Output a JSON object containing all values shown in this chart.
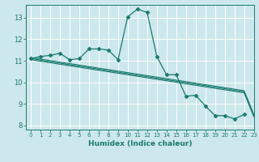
{
  "title": "",
  "xlabel": "Humidex (Indice chaleur)",
  "background_color": "#cce8ec",
  "grid_color": "#ffffff",
  "line_color": "#1a7a6e",
  "xlim": [
    -0.5,
    23
  ],
  "ylim": [
    7.8,
    13.6
  ],
  "yticks": [
    8,
    9,
    10,
    11,
    12,
    13
  ],
  "xticks": [
    0,
    1,
    2,
    3,
    4,
    5,
    6,
    7,
    8,
    9,
    10,
    11,
    12,
    13,
    14,
    15,
    16,
    17,
    18,
    19,
    20,
    21,
    22,
    23
  ],
  "series0_x": [
    0,
    1,
    2,
    3,
    4,
    5,
    6,
    7,
    8,
    9,
    10,
    11,
    12,
    13,
    14,
    15,
    16,
    17,
    18,
    19,
    20,
    21,
    22
  ],
  "series0_y": [
    11.1,
    11.2,
    11.25,
    11.35,
    11.05,
    11.1,
    11.55,
    11.55,
    11.5,
    11.05,
    13.05,
    13.4,
    13.25,
    11.2,
    10.35,
    10.35,
    9.35,
    9.4,
    8.9,
    8.45,
    8.45,
    8.3,
    8.5
  ],
  "series1_x": [
    0,
    1,
    2,
    3,
    4,
    5,
    6,
    7,
    8,
    9,
    10,
    11,
    12,
    13,
    14,
    15,
    16,
    17,
    18,
    19,
    20,
    21,
    22,
    23
  ],
  "series1_y": [
    11.05,
    10.98,
    10.91,
    10.84,
    10.77,
    10.7,
    10.63,
    10.56,
    10.49,
    10.42,
    10.35,
    10.28,
    10.21,
    10.14,
    10.07,
    10.0,
    9.93,
    9.86,
    9.79,
    9.72,
    9.65,
    9.58,
    9.51,
    8.4
  ],
  "series2_x": [
    0,
    1,
    2,
    3,
    4,
    5,
    6,
    7,
    8,
    9,
    10,
    11,
    12,
    13,
    14,
    15,
    16,
    17,
    18,
    19,
    20,
    21,
    22,
    23
  ],
  "series2_y": [
    11.1,
    11.03,
    10.96,
    10.89,
    10.82,
    10.75,
    10.68,
    10.61,
    10.54,
    10.47,
    10.4,
    10.33,
    10.26,
    10.19,
    10.12,
    10.05,
    9.98,
    9.91,
    9.84,
    9.77,
    9.7,
    9.63,
    9.56,
    8.45
  ],
  "series3_x": [
    0,
    1,
    2,
    3,
    4,
    5,
    6,
    7,
    8,
    9,
    10,
    11,
    12,
    13,
    14,
    15,
    16,
    17,
    18,
    19,
    20,
    21,
    22,
    23
  ],
  "series3_y": [
    11.15,
    11.08,
    11.01,
    10.94,
    10.87,
    10.8,
    10.73,
    10.66,
    10.59,
    10.52,
    10.45,
    10.38,
    10.31,
    10.24,
    10.17,
    10.1,
    10.03,
    9.96,
    9.89,
    9.82,
    9.75,
    9.68,
    9.61,
    8.5
  ]
}
